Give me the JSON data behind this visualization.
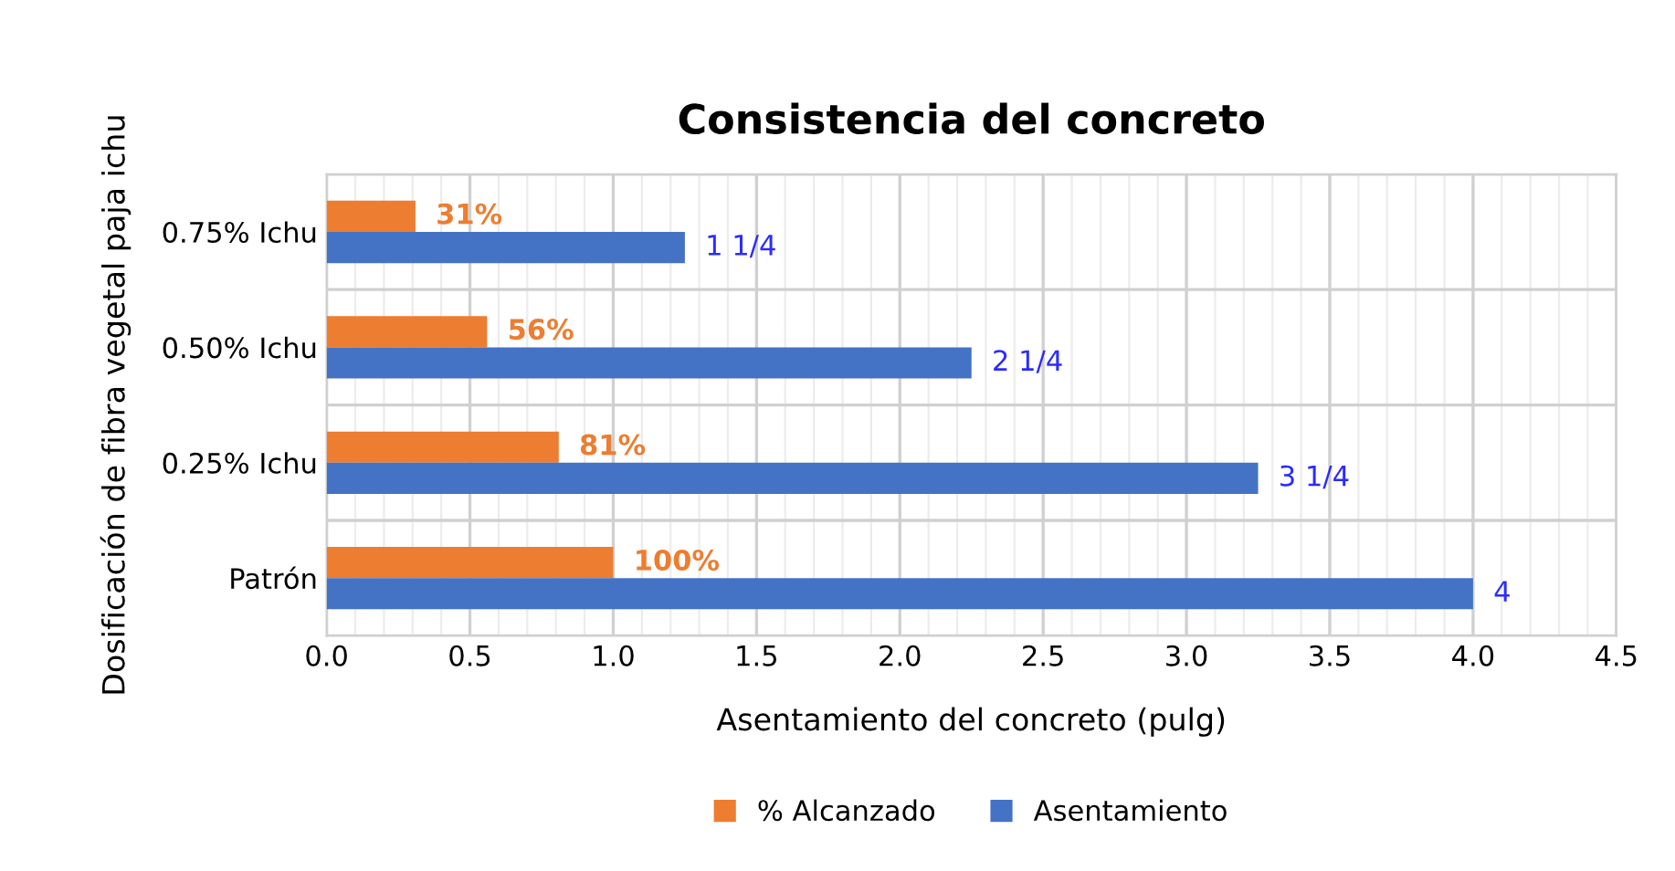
{
  "chart_data": {
    "type": "bar",
    "orientation": "horizontal",
    "title": "Consistencia del concreto",
    "xlabel": "Asentamiento del concreto (pulg)",
    "ylabel": "Dosificación de fibra vegetal paja ichu",
    "categories": [
      "0.75% Ichu",
      "0.50% Ichu",
      "0.25% Ichu",
      "Patrón"
    ],
    "series": [
      {
        "name": "% Alcanzado",
        "color": "#ed7d31",
        "values": [
          0.31,
          0.56,
          0.81,
          1.0
        ],
        "value_labels": [
          "31%",
          "56%",
          "81%",
          "100%"
        ]
      },
      {
        "name": "Asentamiento",
        "color": "#4472c4",
        "values": [
          1.25,
          2.25,
          3.25,
          4.0
        ],
        "value_labels": [
          "1 1/4",
          "2 1/4",
          "3 1/4",
          "4"
        ]
      }
    ],
    "xlim": [
      0,
      4.5
    ],
    "xticks": [
      {
        "value": 0,
        "label": "0.0"
      },
      {
        "value": 0.5,
        "label": "0.5"
      },
      {
        "value": 1,
        "label": "1.0"
      },
      {
        "value": 1.5,
        "label": "1.5"
      },
      {
        "value": 2,
        "label": "2.0"
      },
      {
        "value": 2.5,
        "label": "2.5"
      },
      {
        "value": 3,
        "label": "3.0"
      },
      {
        "value": 3.5,
        "label": "3.5"
      },
      {
        "value": 4,
        "label": "4.0"
      },
      {
        "value": 4.5,
        "label": "4.5"
      }
    ],
    "grid": true,
    "legend": "bottom"
  }
}
